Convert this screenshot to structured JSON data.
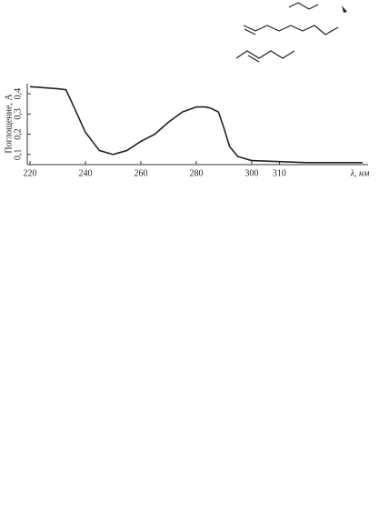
{
  "chart_data": {
    "type": "line",
    "y_label": "Поглощение, A",
    "x_label": "λ, нм",
    "x": [
      220,
      225,
      230,
      233,
      236,
      240,
      245,
      250,
      255,
      260,
      265,
      270,
      275,
      280,
      283,
      285,
      288,
      290,
      292,
      295,
      300,
      310,
      320,
      340
    ],
    "series": [
      {
        "color": "#222222",
        "values": [
          0.435,
          0.43,
          0.425,
          0.42,
          0.33,
          0.21,
          0.12,
          0.1,
          0.12,
          0.165,
          0.2,
          0.26,
          0.31,
          0.335,
          0.335,
          0.33,
          0.31,
          0.23,
          0.14,
          0.09,
          0.07,
          0.065,
          0.06,
          0.06
        ]
      }
    ],
    "xlim": [
      220,
      342
    ],
    "xticks": [
      220,
      240,
      260,
      280,
      300,
      310
    ],
    "ylim": [
      0.05,
      0.45
    ],
    "yticks": [
      {
        "value": 0.1,
        "label": "0,1"
      },
      {
        "value": 0.2,
        "label": "0,2"
      },
      {
        "value": 0.3,
        "label": "0,3"
      },
      {
        "value": 0.4,
        "label": "0,4"
      }
    ]
  }
}
